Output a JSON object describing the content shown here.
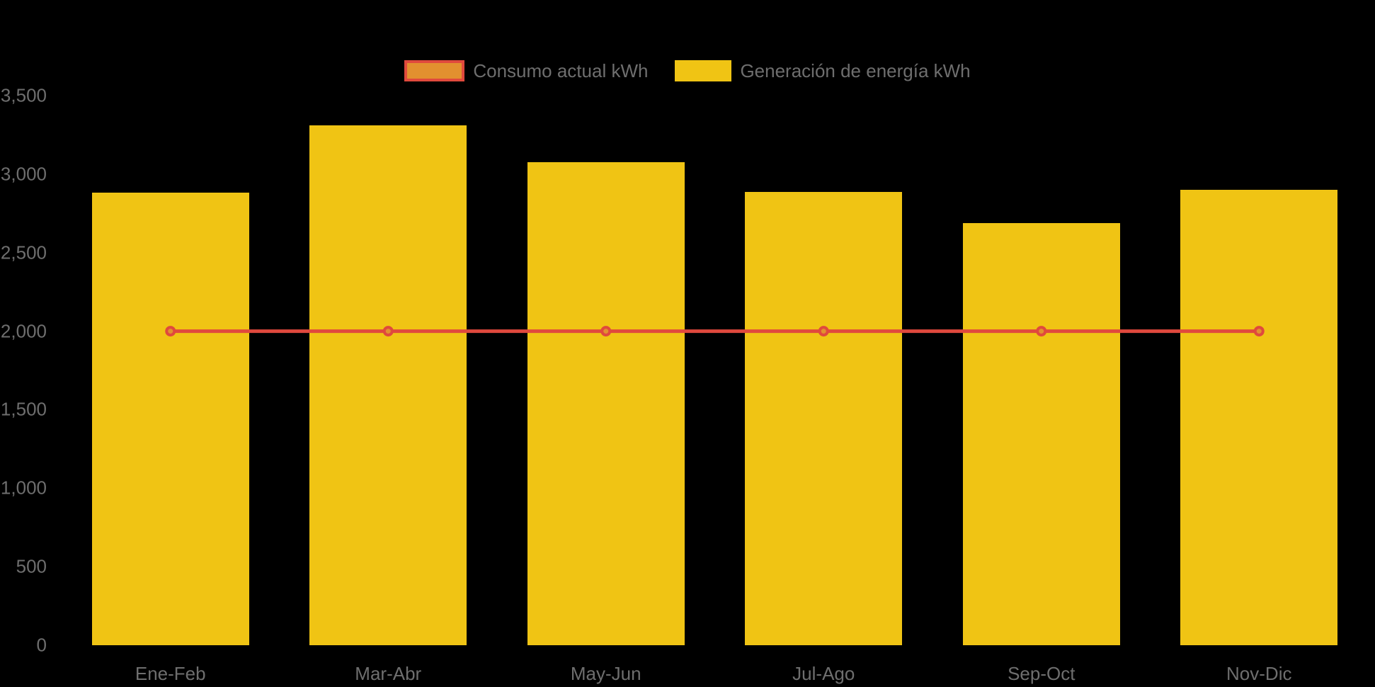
{
  "background": "#000000",
  "colors": {
    "bar": "#F0C414",
    "line": "#E0493D",
    "marker_fill": "#E2902F",
    "text": "#6E6E6E"
  },
  "legend": [
    {
      "label": "Consumo actual kWh",
      "type": "line",
      "swatch_fill": "#E2902F",
      "swatch_border": "#E0493D"
    },
    {
      "label": "Generación de energía kWh",
      "type": "bar",
      "swatch_fill": "#F0C414",
      "swatch_border": "#F0C414"
    }
  ],
  "chart_data": {
    "type": "bar",
    "title": "",
    "xlabel": "",
    "ylabel": "",
    "categories": [
      "Ene-Feb",
      "Mar-Abr",
      "May-Jun",
      "Jul-Ago",
      "Sep-Oct",
      "Nov-Dic"
    ],
    "series": [
      {
        "name": "Consumo actual kWh",
        "type": "line",
        "color": "#E0493D",
        "marker_fill": "#E2902F",
        "values": [
          2000,
          2000,
          2000,
          2000,
          2000,
          2000
        ]
      },
      {
        "name": "Generación de energía kWh",
        "type": "bar",
        "color": "#F0C414",
        "values": [
          2880,
          3310,
          3075,
          2885,
          2690,
          2900
        ]
      }
    ],
    "ylim": [
      0,
      3500
    ],
    "ytick_interval": 500,
    "ytick_labels": [
      "0",
      "500",
      "1,000",
      "1,500",
      "2,000",
      "2,500",
      "3,000",
      "3,500"
    ],
    "grid": false,
    "legend_position": "top-center"
  }
}
